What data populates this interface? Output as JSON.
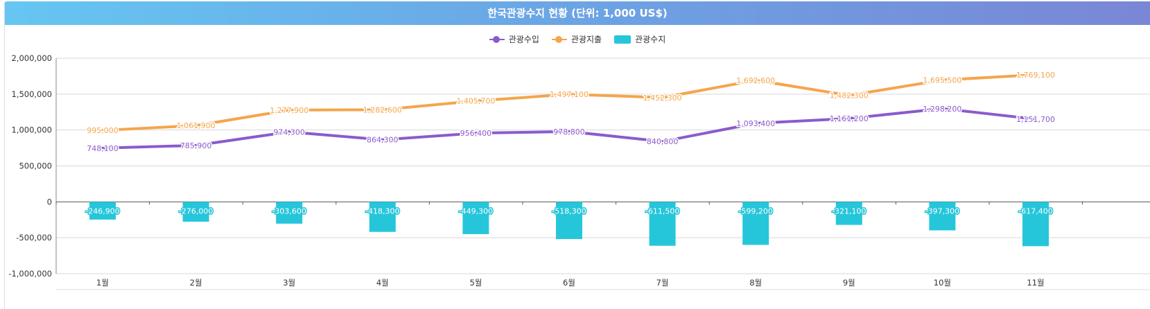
{
  "chart_data": {
    "type": "bar",
    "title": "한국관광수지 현황 (단위: 1,000 US$)",
    "categories": [
      "1월",
      "2월",
      "3월",
      "4월",
      "5월",
      "6월",
      "7월",
      "8월",
      "9월",
      "10월",
      "11월"
    ],
    "series": [
      {
        "name": "관광수입",
        "type": "line",
        "color": "#8b5bcc",
        "values": [
          748100,
          785900,
          974300,
          864300,
          956400,
          978800,
          840800,
          1093400,
          1161200,
          1298200,
          1151700
        ],
        "labels": [
          "748,100",
          "785,900",
          "974,300",
          "864,300",
          "956,400",
          "978,800",
          "840,800",
          "1,093,400",
          "1,161,200",
          "1,298,200",
          "1,151,700"
        ]
      },
      {
        "name": "관광지출",
        "type": "line",
        "color": "#f5a54b",
        "values": [
          995000,
          1061900,
          1277900,
          1282600,
          1405700,
          1497100,
          1452300,
          1692600,
          1482300,
          1695500,
          1769100
        ],
        "labels": [
          "995,000",
          "1,061,900",
          "1,277,900",
          "1,282,600",
          "1,405,700",
          "1,497,100",
          "1,452,300",
          "1,692,600",
          "1,482,300",
          "1,695,500",
          "1,769,100"
        ]
      },
      {
        "name": "관광수지",
        "type": "bar",
        "color": "#26c6da",
        "values": [
          -246900,
          -276000,
          -303600,
          -418300,
          -449300,
          -518300,
          -611500,
          -599200,
          -321100,
          -397300,
          -617400
        ],
        "labels": [
          "-246,900",
          "-276,000",
          "-303,600",
          "-418,300",
          "-449,300",
          "-518,300",
          "-611,500",
          "-599,200",
          "-321,100",
          "-397,300",
          "-617,400"
        ]
      }
    ],
    "ylim": [
      -1000000,
      2000000
    ],
    "yticks": [
      2000000,
      1500000,
      1000000,
      500000,
      0,
      -500000,
      -1000000
    ],
    "ytick_labels": [
      "2,000,000",
      "1,500,000",
      "1,000,000",
      "500,000",
      "0",
      "-500,000",
      "-1,000,000"
    ],
    "grid": true,
    "legend_position": "top-center"
  }
}
